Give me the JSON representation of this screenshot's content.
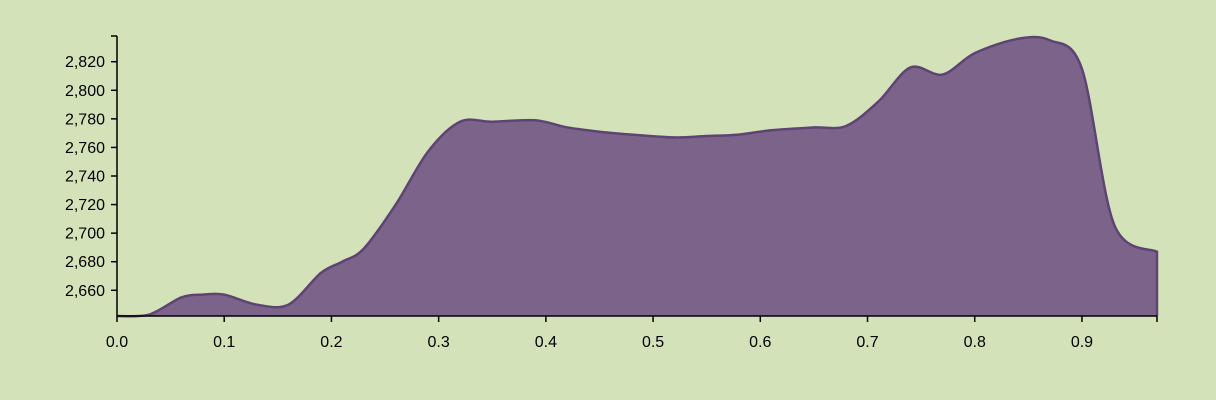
{
  "colors": {
    "background": "#d4e2b9",
    "area_fill": "#7c6389",
    "area_stroke": "#5e4474",
    "axis": "#000000"
  },
  "chart_data": {
    "type": "area",
    "title": "",
    "xlabel": "",
    "ylabel": "",
    "xlim": [
      0,
      0.97
    ],
    "ylim": [
      2642,
      2838
    ],
    "grid": false,
    "x_ticks": [
      0.0,
      0.1,
      0.2,
      0.3,
      0.4,
      0.5,
      0.6,
      0.7,
      0.8,
      0.9
    ],
    "x_tick_labels": [
      "0.0",
      "0.1",
      "0.2",
      "0.3",
      "0.4",
      "0.5",
      "0.6",
      "0.7",
      "0.8",
      "0.9"
    ],
    "y_ticks": [
      2660,
      2680,
      2700,
      2720,
      2740,
      2760,
      2780,
      2800,
      2820
    ],
    "y_tick_labels": [
      "2,660",
      "2,680",
      "2,700",
      "2,720",
      "2,740",
      "2,760",
      "2,780",
      "2,800",
      "2,820"
    ],
    "series": [
      {
        "x": [
          0.0,
          0.03,
          0.06,
          0.08,
          0.1,
          0.13,
          0.16,
          0.19,
          0.21,
          0.23,
          0.26,
          0.29,
          0.32,
          0.35,
          0.39,
          0.42,
          0.45,
          0.48,
          0.52,
          0.55,
          0.58,
          0.61,
          0.65,
          0.68,
          0.71,
          0.74,
          0.77,
          0.8,
          0.84,
          0.87,
          0.9,
          0.93,
          0.97
        ],
        "y": [
          2642,
          2643,
          2655,
          2657,
          2657,
          2650,
          2650,
          2672,
          2680,
          2689,
          2720,
          2757,
          2778,
          2778,
          2779,
          2774,
          2771,
          2769,
          2767,
          2768,
          2769,
          2772,
          2774,
          2775,
          2792,
          2816,
          2811,
          2826,
          2836,
          2835,
          2815,
          2706,
          2687
        ]
      }
    ]
  }
}
